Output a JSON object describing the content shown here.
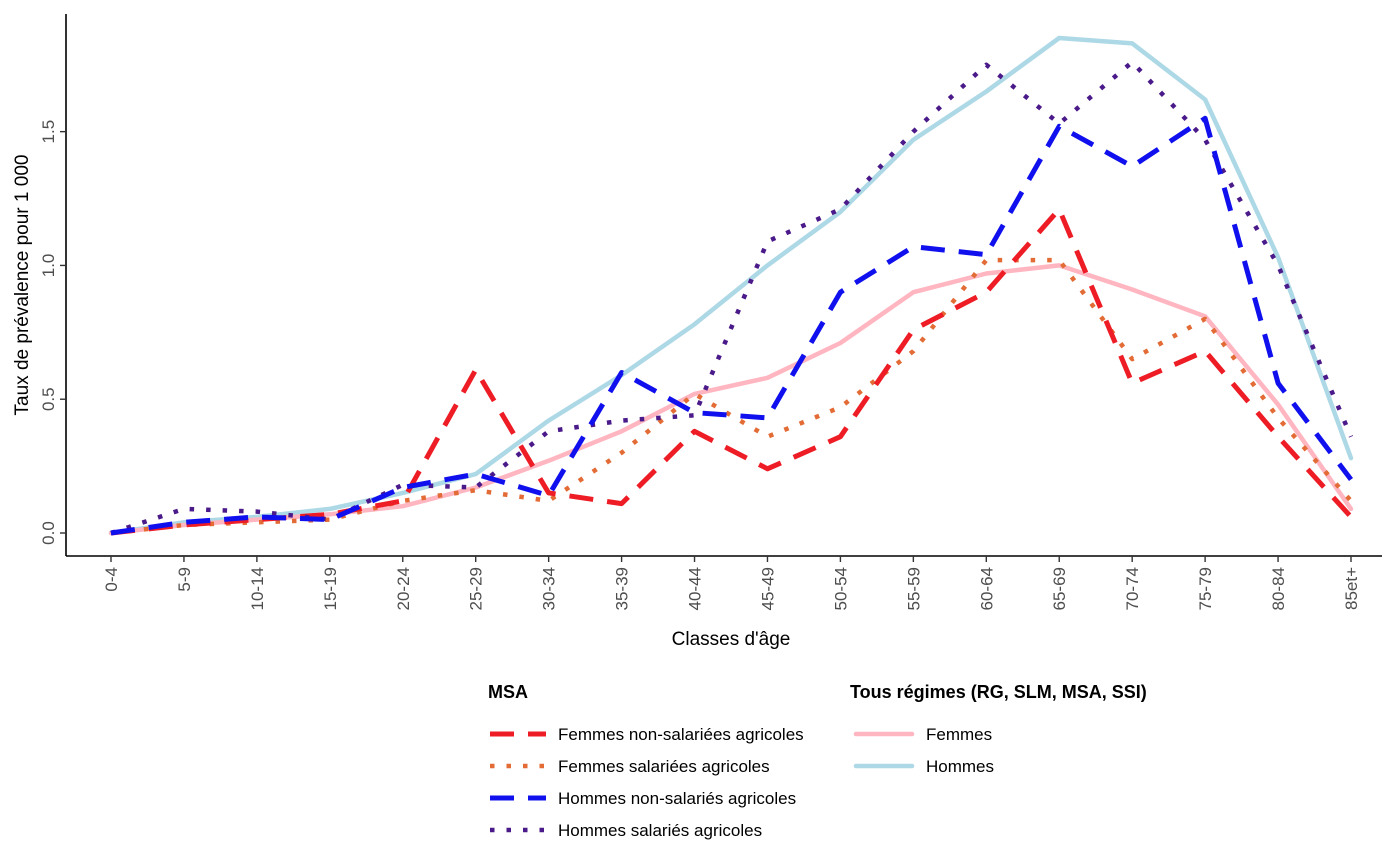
{
  "chart_data": {
    "type": "line",
    "xlabel": "Classes d'âge",
    "ylabel": "Taux de prévalence pour 1 000",
    "categories": [
      "0-4",
      "5-9",
      "10-14",
      "15-19",
      "20-24",
      "25-29",
      "30-34",
      "35-39",
      "40-44",
      "45-49",
      "50-54",
      "55-59",
      "60-64",
      "65-69",
      "70-74",
      "75-79",
      "80-84",
      "85et+"
    ],
    "ylim": [
      0,
      1.85
    ],
    "yticks": [
      0.0,
      0.5,
      1.0,
      1.5
    ],
    "ytick_labels": [
      "0.0",
      "0.5",
      "1.0",
      "1.5"
    ],
    "grid": false,
    "legend_position": "bottom",
    "legend_groups": [
      {
        "title": "MSA",
        "series_indices": [
          0,
          1,
          2,
          3
        ]
      },
      {
        "title": "Tous régimes (RG, SLM, MSA, SSI)",
        "series_indices": [
          4,
          5
        ]
      }
    ],
    "series": [
      {
        "name": "Femmes non-salariées agricoles",
        "color": "#ee1c25",
        "style": "dashed",
        "values": [
          0.0,
          0.03,
          0.05,
          0.07,
          0.12,
          0.61,
          0.15,
          0.11,
          0.38,
          0.24,
          0.36,
          0.76,
          0.9,
          1.21,
          0.56,
          0.68,
          0.36,
          0.06
        ]
      },
      {
        "name": "Femmes salariées agricoles",
        "color": "#e36b35",
        "style": "dotted",
        "values": [
          0.0,
          0.03,
          0.04,
          0.05,
          0.12,
          0.16,
          0.12,
          0.3,
          0.52,
          0.36,
          0.47,
          0.68,
          1.02,
          1.02,
          0.65,
          0.8,
          0.43,
          0.12
        ]
      },
      {
        "name": "Hommes non-salariés agricoles",
        "color": "#1010ee",
        "style": "dashed",
        "values": [
          0.0,
          0.04,
          0.06,
          0.05,
          0.17,
          0.22,
          0.14,
          0.6,
          0.45,
          0.43,
          0.9,
          1.07,
          1.04,
          1.52,
          1.37,
          1.55,
          0.56,
          0.2
        ]
      },
      {
        "name": "Hommes salariés agricoles",
        "color": "#4b1a8a",
        "style": "dotted",
        "values": [
          0.0,
          0.09,
          0.08,
          0.05,
          0.18,
          0.17,
          0.38,
          0.42,
          0.44,
          1.09,
          1.21,
          1.5,
          1.75,
          1.53,
          1.76,
          1.47,
          1.0,
          0.36
        ]
      },
      {
        "name": "Femmes",
        "color": "#ffb6c1",
        "style": "solid",
        "values": [
          0.0,
          0.03,
          0.05,
          0.07,
          0.1,
          0.17,
          0.27,
          0.38,
          0.52,
          0.58,
          0.71,
          0.9,
          0.97,
          1.0,
          0.91,
          0.81,
          0.48,
          0.09
        ]
      },
      {
        "name": "Hommes",
        "color": "#add8e6",
        "style": "solid",
        "values": [
          0.0,
          0.04,
          0.06,
          0.09,
          0.15,
          0.22,
          0.42,
          0.59,
          0.78,
          1.0,
          1.2,
          1.47,
          1.65,
          1.85,
          1.83,
          1.62,
          1.03,
          0.28
        ]
      }
    ]
  }
}
